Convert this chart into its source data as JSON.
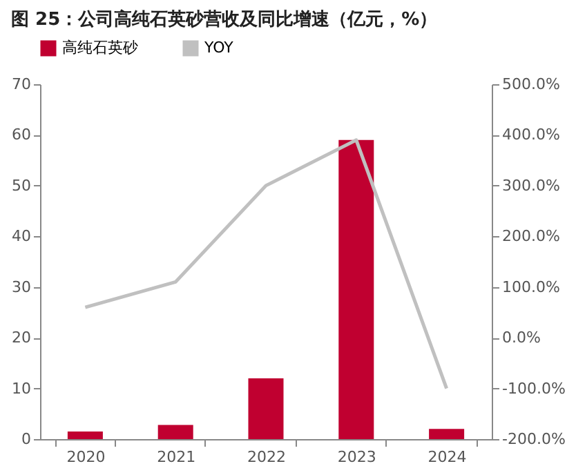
{
  "chart_data": {
    "type": "bar",
    "title": "图 25：公司高纯石英砂营收及同比增速（亿元，%）",
    "categories": [
      "2020",
      "2021",
      "2022",
      "2023",
      "2024"
    ],
    "series": [
      {
        "name": "高纯石英砂",
        "color": "#c00030",
        "values": [
          1.5,
          2.8,
          12,
          59,
          2
        ]
      },
      {
        "name": "YOY",
        "type": "line",
        "axis": "y2",
        "color": "#c0c0c0",
        "values": [
          60,
          110,
          300,
          390,
          -100
        ]
      }
    ],
    "ylim": [
      0,
      70
    ],
    "yticks": [
      0,
      10,
      20,
      30,
      40,
      50,
      60,
      70
    ],
    "y2lim": [
      -200,
      500
    ],
    "y2ticks": [
      {
        "value": -200,
        "label": "-200.0%"
      },
      {
        "value": -100,
        "label": "-100.0%"
      },
      {
        "value": 0,
        "label": "0.0%"
      },
      {
        "value": 100,
        "label": "100.0%"
      },
      {
        "value": 200,
        "label": "200.0%"
      },
      {
        "value": 300,
        "label": "300.0%"
      },
      {
        "value": 400,
        "label": "400.0%"
      },
      {
        "value": 500,
        "label": "500.0%"
      }
    ],
    "grid": false,
    "legend": "top",
    "line_style": "solid",
    "marker": "none"
  }
}
